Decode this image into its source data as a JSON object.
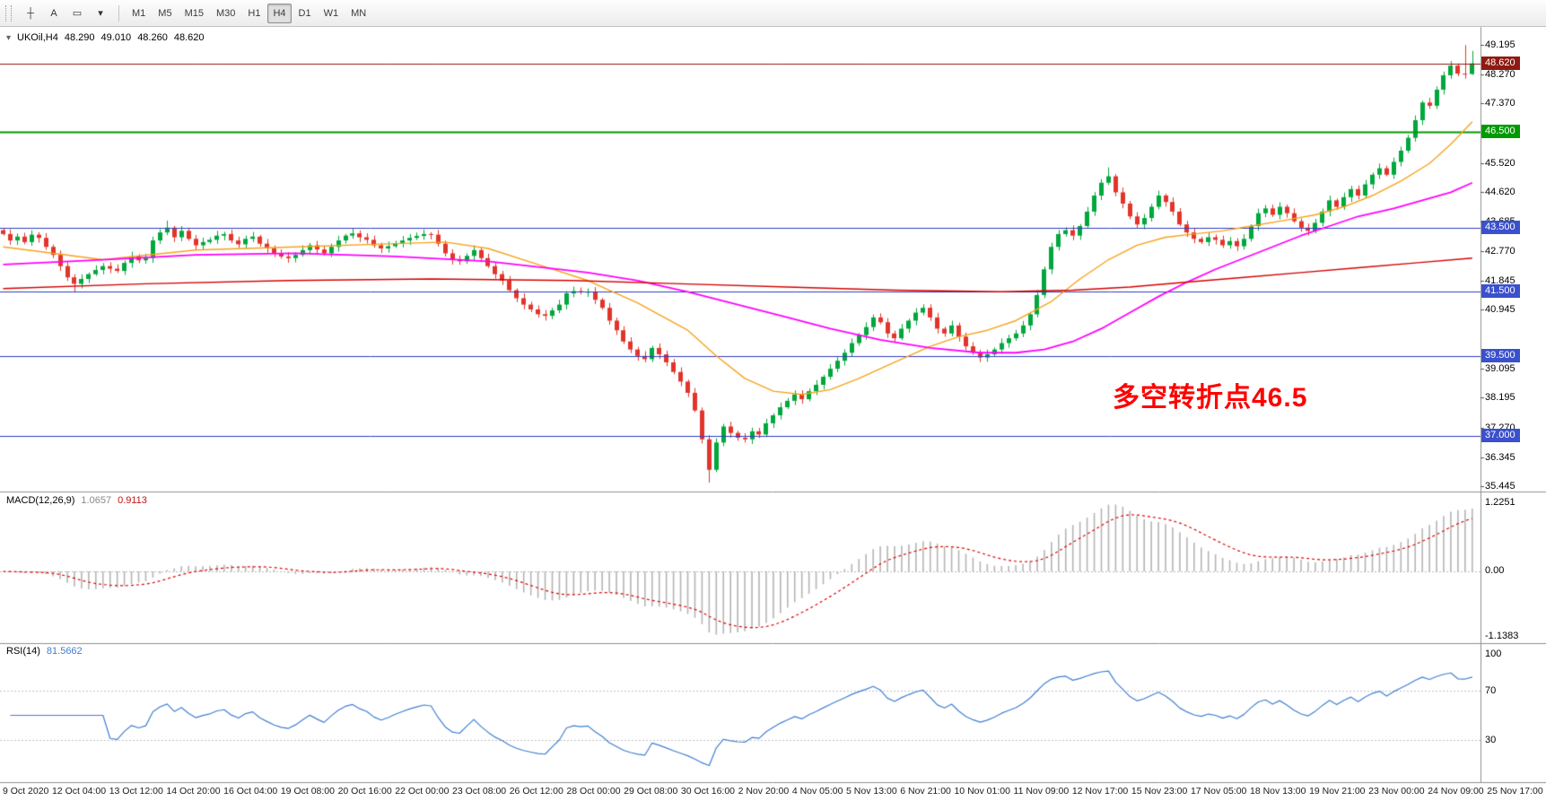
{
  "toolbar": {
    "tools": [
      {
        "label": "┼",
        "name": "crosshair-tool"
      },
      {
        "label": "A",
        "name": "text-tool"
      },
      {
        "label": "▭",
        "name": "rectangle-tool"
      },
      {
        "label": "▾",
        "name": "objects-dropdown"
      }
    ],
    "timeframes": [
      {
        "label": "M1"
      },
      {
        "label": "M5"
      },
      {
        "label": "M15"
      },
      {
        "label": "M30"
      },
      {
        "label": "H1"
      },
      {
        "label": "H4",
        "active": true
      },
      {
        "label": "D1"
      },
      {
        "label": "W1"
      },
      {
        "label": "MN"
      }
    ]
  },
  "chart": {
    "expander": "▾",
    "symbol_header": "UKOil,H4",
    "ohlc": {
      "open": "48.290",
      "high": "49.010",
      "low": "48.260",
      "close": "48.620"
    },
    "annotation": {
      "text": "多空转折点46.5",
      "color": "#ff0000"
    },
    "price_axis": {
      "labels": [
        "49.195",
        "48.270",
        "47.370",
        "45.520",
        "44.620",
        "43.685",
        "42.770",
        "41.845",
        "40.945",
        "39.095",
        "38.195",
        "37.270",
        "36.345",
        "35.445"
      ],
      "badges": [
        {
          "text": "48.620",
          "price": 48.62,
          "color": "#8e1a12",
          "kind": "current-price"
        },
        {
          "text": "46.500",
          "price": 46.5,
          "color": "#009a00",
          "kind": "line-level"
        },
        {
          "text": "43.500",
          "price": 43.5,
          "color": "#3a50cc",
          "kind": "line-level"
        },
        {
          "text": "41.500",
          "price": 41.5,
          "color": "#3a50cc",
          "kind": "line-level"
        },
        {
          "text": "39.500",
          "price": 39.5,
          "color": "#3a50cc",
          "kind": "line-level"
        },
        {
          "text": "37.000",
          "price": 37.0,
          "color": "#3a50cc",
          "kind": "line-level"
        }
      ]
    }
  },
  "chart_data": {
    "type": "candlestick",
    "symbol": "UKOil",
    "timeframe": "H4",
    "ylim": [
      35.3,
      49.73
    ],
    "up_color": "#00a73c",
    "down_color": "#e2342b",
    "first_open": 43.42,
    "closes": [
      43.3,
      43.1,
      43.22,
      43.05,
      43.28,
      43.18,
      42.9,
      42.65,
      42.3,
      41.95,
      41.75,
      41.9,
      42.05,
      42.18,
      42.3,
      42.22,
      42.15,
      42.4,
      42.6,
      42.48,
      42.55,
      43.1,
      43.35,
      43.5,
      43.2,
      43.4,
      43.15,
      42.95,
      43.05,
      43.12,
      43.25,
      43.3,
      43.1,
      42.98,
      43.15,
      43.22,
      43.0,
      42.85,
      42.7,
      42.6,
      42.55,
      42.65,
      42.8,
      42.95,
      42.82,
      42.7,
      42.9,
      43.1,
      43.25,
      43.32,
      43.2,
      43.12,
      42.95,
      42.85,
      42.92,
      43.02,
      43.1,
      43.18,
      43.24,
      43.3,
      43.28,
      43.0,
      42.7,
      42.5,
      42.45,
      42.62,
      42.8,
      42.55,
      42.3,
      42.05,
      41.85,
      41.55,
      41.3,
      41.1,
      40.95,
      40.8,
      40.75,
      40.92,
      41.1,
      41.45,
      41.52,
      41.48,
      41.5,
      41.25,
      41.0,
      40.6,
      40.3,
      39.95,
      39.7,
      39.5,
      39.4,
      39.75,
      39.55,
      39.3,
      39.0,
      38.7,
      38.35,
      37.8,
      36.9,
      35.95,
      36.8,
      37.3,
      37.1,
      36.95,
      36.9,
      37.15,
      37.05,
      37.4,
      37.65,
      37.9,
      38.1,
      38.3,
      38.15,
      38.4,
      38.6,
      38.85,
      39.1,
      39.35,
      39.6,
      39.9,
      40.15,
      40.4,
      40.7,
      40.55,
      40.2,
      40.05,
      40.35,
      40.6,
      40.85,
      41.0,
      40.7,
      40.35,
      40.2,
      40.45,
      40.1,
      39.8,
      39.6,
      39.45,
      39.55,
      39.7,
      39.9,
      40.05,
      40.2,
      40.45,
      40.8,
      41.4,
      42.2,
      42.9,
      43.3,
      43.42,
      43.25,
      43.55,
      44.0,
      44.5,
      44.9,
      45.1,
      44.6,
      44.25,
      43.85,
      43.6,
      43.8,
      44.15,
      44.5,
      44.3,
      44.0,
      43.6,
      43.35,
      43.15,
      43.05,
      43.2,
      43.12,
      42.95,
      43.08,
      42.92,
      43.15,
      43.55,
      43.95,
      44.1,
      43.9,
      44.15,
      43.95,
      43.7,
      43.5,
      43.4,
      43.65,
      44.0,
      44.35,
      44.15,
      44.45,
      44.7,
      44.5,
      44.85,
      45.15,
      45.35,
      45.15,
      45.55,
      45.9,
      46.3,
      46.85,
      47.4,
      47.3,
      47.8,
      48.25,
      48.55,
      48.3,
      48.29,
      48.62
    ],
    "wick_overrides": {
      "10": {
        "low": 41.5
      },
      "23": {
        "high": 43.72
      },
      "99": {
        "low": 35.55
      },
      "155": {
        "high": 45.38
      },
      "205": {
        "high": 49.195
      },
      "206": {
        "open": 48.29,
        "high": 49.01,
        "low": 48.26
      }
    },
    "horizontal_lines": [
      {
        "price": 46.5,
        "color": "#009a00",
        "width": 2
      },
      {
        "price": 43.5,
        "color": "#2f3cc3",
        "width": 1
      },
      {
        "price": 41.5,
        "color": "#2f3cc3",
        "width": 1
      },
      {
        "price": 39.5,
        "color": "#2f3cc3",
        "width": 1
      },
      {
        "price": 37.0,
        "color": "#2f3cc3",
        "width": 1
      }
    ],
    "current_price": 48.62,
    "current_price_color": "#8e1a12",
    "moving_averages": [
      {
        "name": "ma-fast",
        "color": "#f7a21b",
        "width": 1.4,
        "points": [
          [
            0,
            42.9
          ],
          [
            14,
            42.5
          ],
          [
            27,
            42.8
          ],
          [
            41,
            42.9
          ],
          [
            55,
            43.0
          ],
          [
            62,
            43.05
          ],
          [
            68,
            42.85
          ],
          [
            75,
            42.35
          ],
          [
            82,
            41.85
          ],
          [
            89,
            41.15
          ],
          [
            96,
            40.3
          ],
          [
            100,
            39.5
          ],
          [
            104,
            38.8
          ],
          [
            108,
            38.4
          ],
          [
            112,
            38.3
          ],
          [
            116,
            38.45
          ],
          [
            120,
            38.8
          ],
          [
            125,
            39.3
          ],
          [
            130,
            39.8
          ],
          [
            134,
            40.1
          ],
          [
            138,
            40.3
          ],
          [
            142,
            40.6
          ],
          [
            147,
            41.2
          ],
          [
            151,
            41.9
          ],
          [
            155,
            42.5
          ],
          [
            159,
            42.95
          ],
          [
            163,
            43.2
          ],
          [
            167,
            43.3
          ],
          [
            171,
            43.4
          ],
          [
            175,
            43.55
          ],
          [
            179,
            43.7
          ],
          [
            184,
            43.9
          ],
          [
            188,
            44.15
          ],
          [
            192,
            44.5
          ],
          [
            196,
            44.95
          ],
          [
            200,
            45.5
          ],
          [
            203,
            46.1
          ],
          [
            206,
            46.8
          ]
        ]
      },
      {
        "name": "ma-mid",
        "color": "#ff00ff",
        "width": 1.8,
        "points": [
          [
            0,
            42.35
          ],
          [
            14,
            42.5
          ],
          [
            27,
            42.65
          ],
          [
            41,
            42.7
          ],
          [
            55,
            42.6
          ],
          [
            68,
            42.45
          ],
          [
            82,
            42.1
          ],
          [
            89,
            41.85
          ],
          [
            96,
            41.5
          ],
          [
            103,
            41.1
          ],
          [
            110,
            40.7
          ],
          [
            116,
            40.35
          ],
          [
            123,
            40.0
          ],
          [
            130,
            39.75
          ],
          [
            137,
            39.6
          ],
          [
            142,
            39.6
          ],
          [
            146,
            39.7
          ],
          [
            150,
            39.95
          ],
          [
            154,
            40.35
          ],
          [
            158,
            40.85
          ],
          [
            162,
            41.35
          ],
          [
            166,
            41.8
          ],
          [
            170,
            42.2
          ],
          [
            174,
            42.55
          ],
          [
            178,
            42.9
          ],
          [
            182,
            43.25
          ],
          [
            186,
            43.55
          ],
          [
            190,
            43.85
          ],
          [
            195,
            44.1
          ],
          [
            199,
            44.35
          ],
          [
            203,
            44.6
          ],
          [
            206,
            44.9
          ]
        ]
      },
      {
        "name": "ma-slow",
        "color": "#d40000",
        "width": 1.4,
        "points": [
          [
            0,
            41.6
          ],
          [
            20,
            41.75
          ],
          [
            40,
            41.85
          ],
          [
            60,
            41.9
          ],
          [
            80,
            41.85
          ],
          [
            95,
            41.75
          ],
          [
            110,
            41.65
          ],
          [
            125,
            41.55
          ],
          [
            140,
            41.5
          ],
          [
            150,
            41.55
          ],
          [
            158,
            41.65
          ],
          [
            166,
            41.8
          ],
          [
            174,
            41.95
          ],
          [
            182,
            42.1
          ],
          [
            190,
            42.25
          ],
          [
            198,
            42.4
          ],
          [
            206,
            42.55
          ]
        ]
      }
    ],
    "macd": {
      "label": "MACD(12,26,9)",
      "fast": 12,
      "slow": 26,
      "signal": 9,
      "main_value": "1.0657",
      "signal_value": "0.9113",
      "axis_labels": [
        "1.2251",
        "0.00",
        "-1.1383"
      ],
      "histogram_color": "#b4b4b4",
      "signal_color": "#dd0000"
    },
    "rsi": {
      "label": "RSI(14)",
      "period": 14,
      "value": "81.5662",
      "line_color": "#3f7fd2",
      "levels": [
        70,
        30
      ],
      "axis_labels": [
        "100",
        "70",
        "30"
      ]
    },
    "time_labels": [
      "9 Oct 2020",
      "12 Oct 04:00",
      "13 Oct 12:00",
      "14 Oct 20:00",
      "16 Oct 04:00",
      "19 Oct 08:00",
      "20 Oct 16:00",
      "22 Oct 00:00",
      "23 Oct 08:00",
      "26 Oct 12:00",
      "28 Oct 00:00",
      "29 Oct 08:00",
      "30 Oct 16:00",
      "2 Nov 20:00",
      "4 Nov 05:00",
      "5 Nov 13:00",
      "6 Nov 21:00",
      "10 Nov 01:00",
      "11 Nov 09:00",
      "12 Nov 17:00",
      "15 Nov 23:00",
      "17 Nov 05:00",
      "18 Nov 13:00",
      "19 Nov 21:00",
      "23 Nov 00:00",
      "24 Nov 09:00",
      "25 Nov 17:00"
    ]
  }
}
